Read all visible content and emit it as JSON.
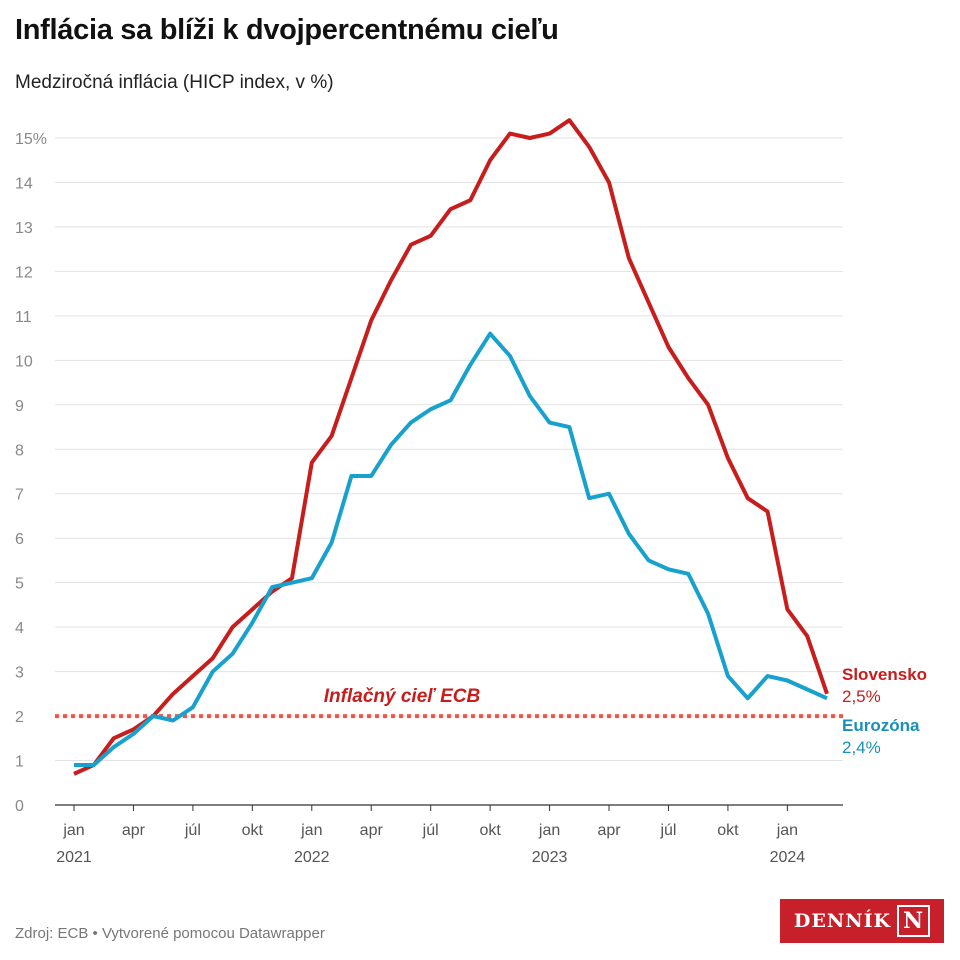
{
  "title": "Inflácia sa blíži k dvojpercentnému cieľu",
  "subtitle": "Medziročná inflácia (HICP index, v %)",
  "footer": "Zdroj: ECB • Vytvorené pomocou Datawrapper",
  "logo": {
    "text": "DENNÍK",
    "mark": "N"
  },
  "chart_data": {
    "type": "line",
    "x_start": "2021-01",
    "x_end": "2024-03",
    "x_ticks": [
      {
        "month": "2021-01",
        "label": "jan",
        "year": "2021"
      },
      {
        "month": "2021-04",
        "label": "apr"
      },
      {
        "month": "2021-07",
        "label": "júl"
      },
      {
        "month": "2021-10",
        "label": "okt"
      },
      {
        "month": "2022-01",
        "label": "jan",
        "year": "2022"
      },
      {
        "month": "2022-04",
        "label": "apr"
      },
      {
        "month": "2022-07",
        "label": "júl"
      },
      {
        "month": "2022-10",
        "label": "okt"
      },
      {
        "month": "2023-01",
        "label": "jan",
        "year": "2023"
      },
      {
        "month": "2023-04",
        "label": "apr"
      },
      {
        "month": "2023-07",
        "label": "júl"
      },
      {
        "month": "2023-10",
        "label": "okt"
      },
      {
        "month": "2024-01",
        "label": "jan",
        "year": "2024"
      }
    ],
    "y_ticks": [
      "0",
      "1",
      "2",
      "3",
      "4",
      "5",
      "6",
      "7",
      "8",
      "9",
      "10",
      "11",
      "12",
      "13",
      "14",
      "15%"
    ],
    "ylim": [
      0,
      15
    ],
    "grid": true,
    "series": [
      {
        "name": "Slovensko",
        "end_label": "2,5%",
        "color": "#c71e1d",
        "values": [
          0.7,
          0.9,
          1.5,
          1.7,
          2.0,
          2.5,
          2.9,
          3.3,
          4.0,
          4.4,
          4.8,
          5.1,
          7.7,
          8.3,
          9.6,
          10.9,
          11.8,
          12.6,
          12.8,
          13.4,
          13.6,
          14.5,
          15.1,
          15.0,
          15.1,
          15.4,
          14.8,
          14.0,
          12.3,
          11.3,
          10.3,
          9.6,
          9.0,
          7.8,
          6.9,
          6.6,
          4.4,
          3.8,
          2.5
        ]
      },
      {
        "name": "Eurozóna",
        "end_label": "2,4%",
        "color": "#18a1cd",
        "values": [
          0.9,
          0.9,
          1.3,
          1.6,
          2.0,
          1.9,
          2.2,
          3.0,
          3.4,
          4.1,
          4.9,
          5.0,
          5.1,
          5.9,
          7.4,
          7.4,
          8.1,
          8.6,
          8.9,
          9.1,
          9.9,
          10.6,
          10.1,
          9.2,
          8.6,
          8.5,
          6.9,
          7.0,
          6.1,
          5.5,
          5.3,
          5.2,
          4.3,
          2.9,
          2.4,
          2.9,
          2.8,
          2.6,
          2.4
        ]
      }
    ],
    "annotations": [
      {
        "text": "Inflačný cieľ ECB",
        "y": 2,
        "color": "#f0574a",
        "style": "dotted"
      }
    ]
  }
}
